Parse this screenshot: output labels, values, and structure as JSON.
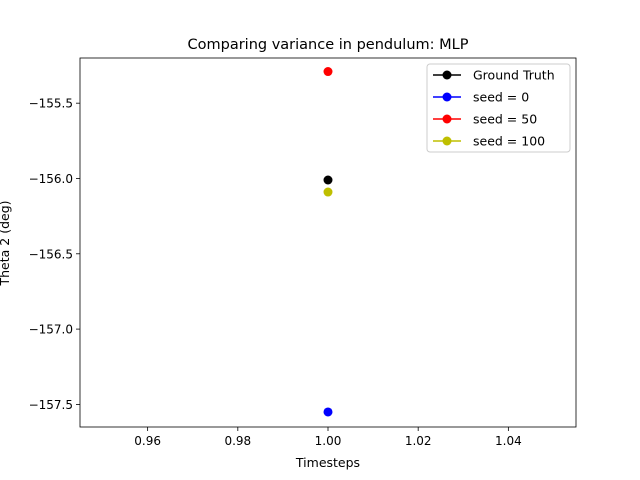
{
  "chart_data": {
    "type": "scatter",
    "title": "Comparing variance in pendulum: MLP",
    "xlabel": "Timesteps",
    "ylabel": "Theta 2 (deg)",
    "xlim": [
      0.945,
      1.055
    ],
    "ylim": [
      -157.65,
      -155.2
    ],
    "xticks": [
      0.96,
      0.98,
      1.0,
      1.02,
      1.04
    ],
    "xtick_labels": [
      "0.96",
      "0.98",
      "1.00",
      "1.02",
      "1.04"
    ],
    "yticks": [
      -155.5,
      -156.0,
      -156.5,
      -157.0,
      -157.5
    ],
    "ytick_labels": [
      "−155.5",
      "−156.0",
      "−156.5",
      "−157.0",
      "−157.5"
    ],
    "grid": false,
    "legend_position": "top-right",
    "series": [
      {
        "name": "Ground Truth",
        "color": "#000000",
        "x": [
          1.0
        ],
        "y": [
          -156.01
        ]
      },
      {
        "name": "seed = 0",
        "color": "#0000ff",
        "x": [
          1.0
        ],
        "y": [
          -157.55
        ]
      },
      {
        "name": "seed = 50",
        "color": "#ff0000",
        "x": [
          1.0
        ],
        "y": [
          -155.29
        ]
      },
      {
        "name": "seed = 100",
        "color": "#bfbf00",
        "x": [
          1.0
        ],
        "y": [
          -156.09
        ]
      }
    ]
  }
}
